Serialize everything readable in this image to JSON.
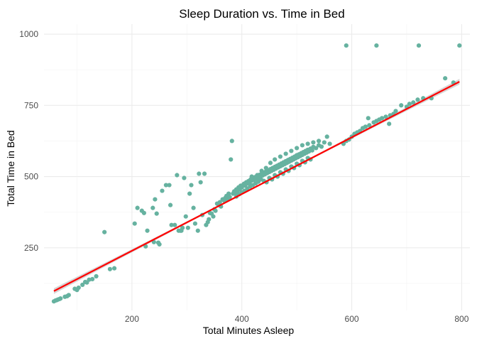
{
  "chart_data": {
    "type": "scatter",
    "title": "Sleep Duration vs. Time in Bed",
    "xlabel": "Total Minutes Asleep",
    "ylabel": "Total Time in Bed",
    "xlim": [
      40,
      815
    ],
    "ylim": [
      30,
      1035
    ],
    "x_ticks": [
      200,
      400,
      600,
      800
    ],
    "y_ticks": [
      250,
      500,
      750,
      1000
    ],
    "x_minor": [
      100,
      300,
      500,
      700
    ],
    "y_minor": [
      125,
      375,
      625,
      875
    ],
    "grid": true,
    "legend": "none",
    "colors": {
      "points": "#66b2a0",
      "trend_line": "#ff0000",
      "confidence_band": "#c8c8c8",
      "grid": "#ebebeb"
    },
    "trend_line": {
      "method": "lm",
      "start": [
        58,
        98
      ],
      "end": [
        796,
        833
      ],
      "band_half_width_ends": 10,
      "band_half_width_center": 3
    },
    "points": [
      [
        58,
        62
      ],
      [
        61,
        65
      ],
      [
        63,
        66
      ],
      [
        65,
        68
      ],
      [
        68,
        70
      ],
      [
        70,
        72
      ],
      [
        78,
        78
      ],
      [
        82,
        80
      ],
      [
        85,
        84
      ],
      [
        96,
        106
      ],
      [
        100,
        102
      ],
      [
        103,
        110
      ],
      [
        110,
        120
      ],
      [
        115,
        130
      ],
      [
        118,
        128
      ],
      [
        122,
        138
      ],
      [
        128,
        140
      ],
      [
        135,
        150
      ],
      [
        150,
        305
      ],
      [
        160,
        175
      ],
      [
        168,
        178
      ],
      [
        205,
        335
      ],
      [
        210,
        390
      ],
      [
        218,
        380
      ],
      [
        222,
        372
      ],
      [
        225,
        255
      ],
      [
        228,
        310
      ],
      [
        238,
        390
      ],
      [
        240,
        270
      ],
      [
        242,
        420
      ],
      [
        245,
        370
      ],
      [
        248,
        268
      ],
      [
        250,
        262
      ],
      [
        255,
        450
      ],
      [
        262,
        470
      ],
      [
        268,
        470
      ],
      [
        270,
        400
      ],
      [
        272,
        330
      ],
      [
        278,
        330
      ],
      [
        282,
        505
      ],
      [
        285,
        310
      ],
      [
        288,
        310
      ],
      [
        290,
        310
      ],
      [
        292,
        320
      ],
      [
        295,
        495
      ],
      [
        298,
        360
      ],
      [
        302,
        320
      ],
      [
        305,
        440
      ],
      [
        308,
        470
      ],
      [
        312,
        390
      ],
      [
        315,
        335
      ],
      [
        320,
        310
      ],
      [
        322,
        510
      ],
      [
        325,
        480
      ],
      [
        328,
        365
      ],
      [
        332,
        510
      ],
      [
        335,
        330
      ],
      [
        338,
        340
      ],
      [
        340,
        350
      ],
      [
        342,
        372
      ],
      [
        345,
        370
      ],
      [
        348,
        360
      ],
      [
        350,
        385
      ],
      [
        352,
        380
      ],
      [
        355,
        405
      ],
      [
        358,
        400
      ],
      [
        360,
        410
      ],
      [
        362,
        395
      ],
      [
        365,
        420
      ],
      [
        368,
        415
      ],
      [
        370,
        425
      ],
      [
        372,
        432
      ],
      [
        374,
        420
      ],
      [
        376,
        440
      ],
      [
        378,
        428
      ],
      [
        380,
        560
      ],
      [
        382,
        625
      ],
      [
        384,
        440
      ],
      [
        386,
        448
      ],
      [
        388,
        442
      ],
      [
        390,
        455
      ],
      [
        392,
        450
      ],
      [
        394,
        462
      ],
      [
        396,
        455
      ],
      [
        398,
        468
      ],
      [
        400,
        462
      ],
      [
        402,
        470
      ],
      [
        404,
        475
      ],
      [
        406,
        468
      ],
      [
        408,
        480
      ],
      [
        410,
        476
      ],
      [
        412,
        484
      ],
      [
        414,
        478
      ],
      [
        416,
        490
      ],
      [
        418,
        486
      ],
      [
        420,
        494
      ],
      [
        422,
        488
      ],
      [
        424,
        498
      ],
      [
        426,
        492
      ],
      [
        428,
        502
      ],
      [
        430,
        496
      ],
      [
        432,
        506
      ],
      [
        434,
        500
      ],
      [
        436,
        510
      ],
      [
        438,
        504
      ],
      [
        440,
        514
      ],
      [
        442,
        508
      ],
      [
        444,
        518
      ],
      [
        446,
        512
      ],
      [
        448,
        522
      ],
      [
        450,
        516
      ],
      [
        452,
        526
      ],
      [
        454,
        520
      ],
      [
        456,
        530
      ],
      [
        458,
        524
      ],
      [
        460,
        534
      ],
      [
        462,
        528
      ],
      [
        464,
        538
      ],
      [
        466,
        532
      ],
      [
        468,
        542
      ],
      [
        470,
        536
      ],
      [
        472,
        546
      ],
      [
        474,
        540
      ],
      [
        476,
        550
      ],
      [
        478,
        544
      ],
      [
        480,
        554
      ],
      [
        482,
        548
      ],
      [
        484,
        558
      ],
      [
        486,
        552
      ],
      [
        488,
        562
      ],
      [
        490,
        556
      ],
      [
        492,
        566
      ],
      [
        494,
        560
      ],
      [
        496,
        570
      ],
      [
        498,
        564
      ],
      [
        500,
        575
      ],
      [
        502,
        568
      ],
      [
        504,
        578
      ],
      [
        506,
        572
      ],
      [
        508,
        582
      ],
      [
        510,
        576
      ],
      [
        512,
        586
      ],
      [
        514,
        580
      ],
      [
        516,
        590
      ],
      [
        518,
        584
      ],
      [
        520,
        594
      ],
      [
        522,
        588
      ],
      [
        525,
        598
      ],
      [
        528,
        592
      ],
      [
        530,
        604
      ],
      [
        535,
        600
      ],
      [
        540,
        610
      ],
      [
        545,
        605
      ],
      [
        550,
        620
      ],
      [
        555,
        640
      ],
      [
        560,
        615
      ],
      [
        440,
        485
      ],
      [
        445,
        480
      ],
      [
        450,
        495
      ],
      [
        455,
        490
      ],
      [
        460,
        505
      ],
      [
        465,
        500
      ],
      [
        470,
        515
      ],
      [
        475,
        510
      ],
      [
        480,
        525
      ],
      [
        485,
        520
      ],
      [
        490,
        535
      ],
      [
        495,
        530
      ],
      [
        500,
        545
      ],
      [
        505,
        540
      ],
      [
        510,
        555
      ],
      [
        515,
        550
      ],
      [
        520,
        565
      ],
      [
        525,
        560
      ],
      [
        390,
        430
      ],
      [
        395,
        438
      ],
      [
        400,
        445
      ],
      [
        405,
        450
      ],
      [
        410,
        458
      ],
      [
        415,
        465
      ],
      [
        420,
        470
      ],
      [
        425,
        476
      ],
      [
        430,
        482
      ],
      [
        435,
        490
      ],
      [
        418,
        500
      ],
      [
        428,
        505
      ],
      [
        436,
        520
      ],
      [
        444,
        530
      ],
      [
        452,
        548
      ],
      [
        460,
        560
      ],
      [
        470,
        570
      ],
      [
        480,
        580
      ],
      [
        490,
        590
      ],
      [
        500,
        600
      ],
      [
        510,
        610
      ],
      [
        520,
        615
      ],
      [
        530,
        620
      ],
      [
        540,
        625
      ],
      [
        585,
        615
      ],
      [
        590,
        625
      ],
      [
        595,
        630
      ],
      [
        600,
        640
      ],
      [
        605,
        650
      ],
      [
        610,
        655
      ],
      [
        615,
        660
      ],
      [
        620,
        670
      ],
      [
        625,
        675
      ],
      [
        630,
        705
      ],
      [
        632,
        680
      ],
      [
        640,
        690
      ],
      [
        645,
        695
      ],
      [
        650,
        700
      ],
      [
        655,
        705
      ],
      [
        662,
        710
      ],
      [
        668,
        685
      ],
      [
        670,
        715
      ],
      [
        676,
        720
      ],
      [
        680,
        730
      ],
      [
        690,
        750
      ],
      [
        700,
        745
      ],
      [
        705,
        755
      ],
      [
        712,
        760
      ],
      [
        720,
        770
      ],
      [
        730,
        775
      ],
      [
        745,
        775
      ],
      [
        770,
        845
      ],
      [
        785,
        830
      ],
      [
        590,
        960
      ],
      [
        645,
        960
      ],
      [
        722,
        960
      ],
      [
        796,
        960
      ]
    ]
  }
}
